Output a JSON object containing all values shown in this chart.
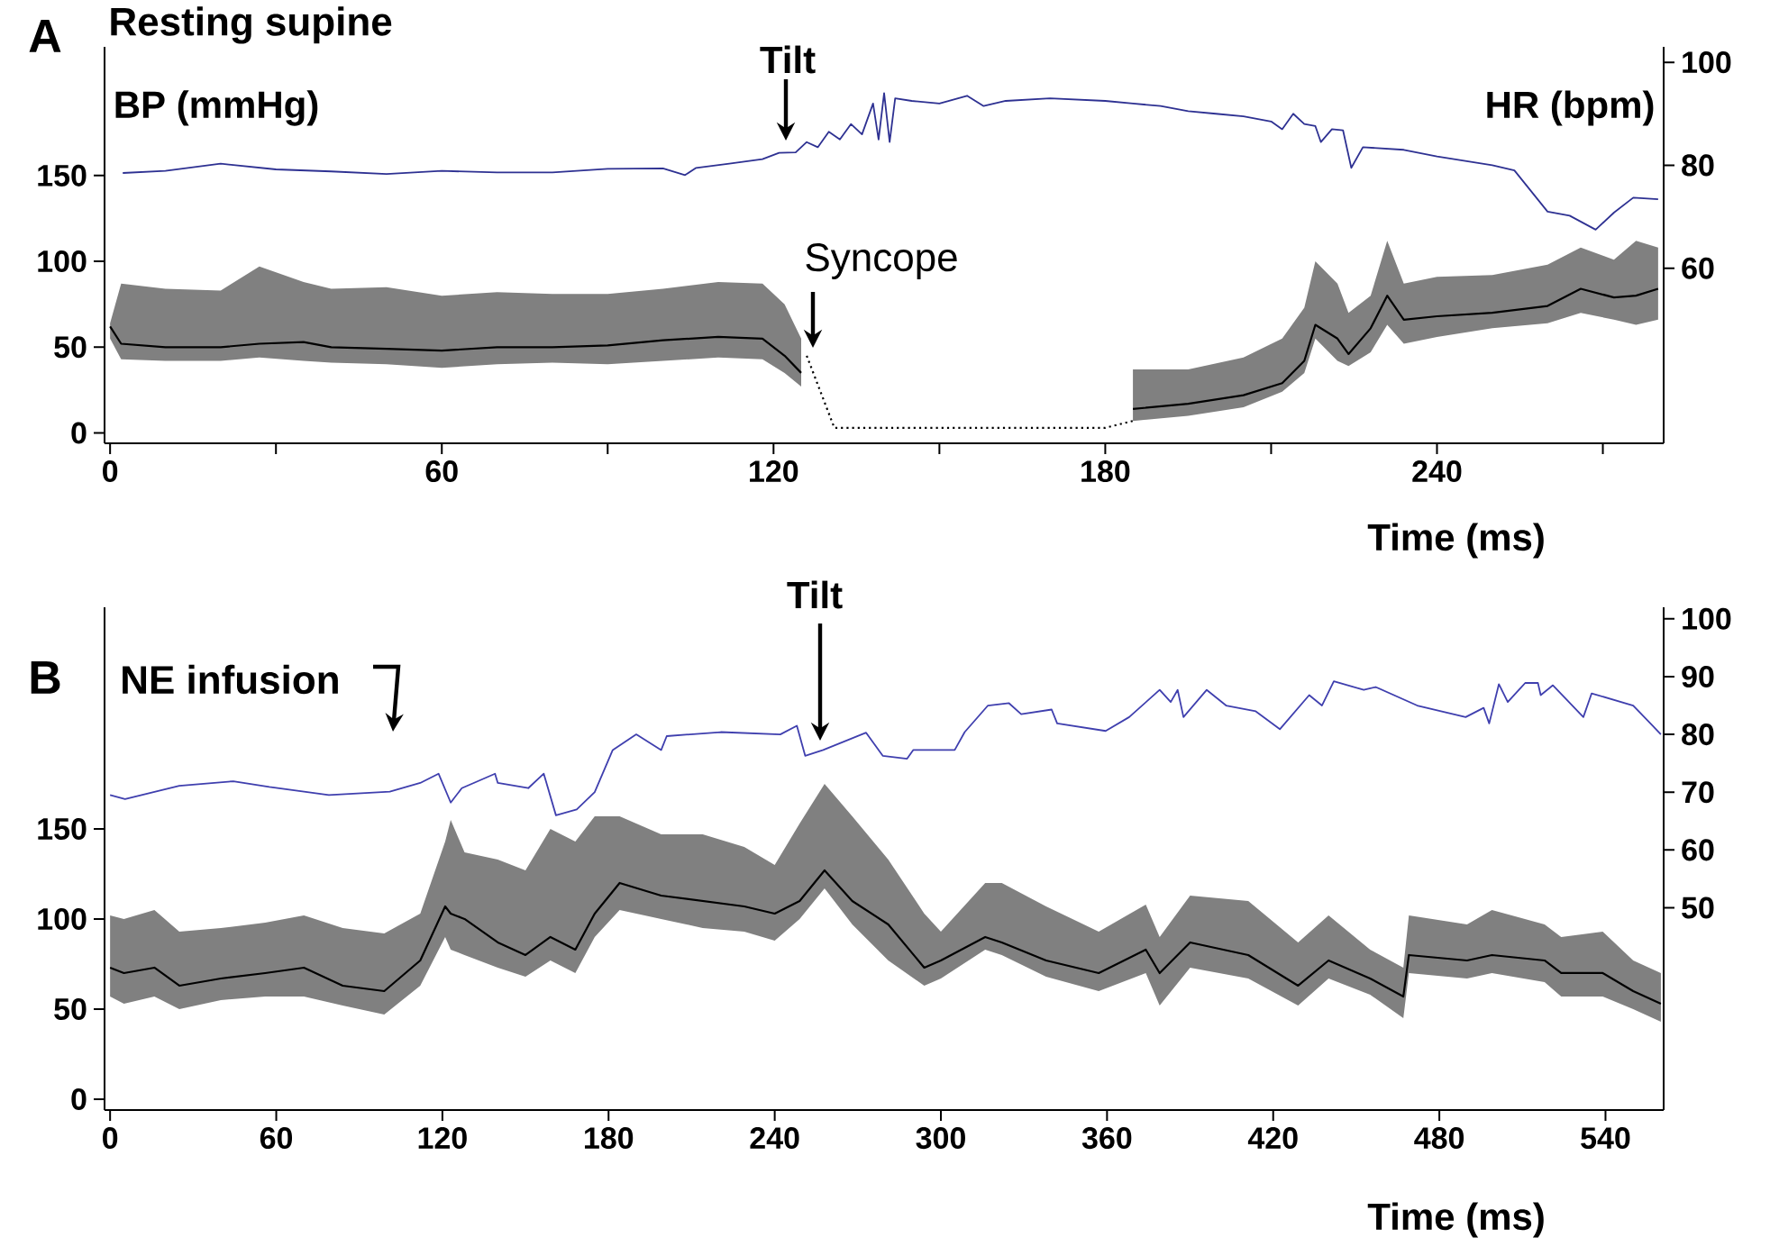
{
  "chart_data": [
    {
      "type": "line",
      "title": "Resting supine",
      "xlabel": "Time (ms)",
      "ylabel": "BP (mmHg)",
      "y2label": "HR (bpm)",
      "xlim": [
        -1,
        281
      ],
      "xticks": [
        0,
        {
          "value": 30,
          "label": null
        },
        60,
        {
          "value": 90,
          "label": null
        },
        120,
        {
          "value": 150,
          "label": null
        },
        180,
        {
          "value": 210,
          "label": null
        },
        240,
        {
          "value": 270,
          "label": null
        }
      ],
      "ylim": [
        -6,
        225
      ],
      "yticks": [
        0,
        50,
        100,
        150
      ],
      "y2lim": [
        26,
        103
      ],
      "y2ticks": [
        60,
        80,
        100
      ],
      "annotations": [
        "A",
        "Tilt",
        "Syncope"
      ],
      "series": [
        {
          "color": "#000000",
          "x": [
            0,
            2,
            10,
            20,
            27,
            35,
            40,
            50,
            60,
            70,
            80,
            90,
            100,
            110,
            118,
            122,
            125,
            150,
            185,
            195,
            205,
            212,
            216,
            218,
            222,
            224,
            228,
            231,
            234,
            240,
            250,
            260,
            266,
            272,
            276,
            280
          ],
          "values": [
            62,
            52,
            50,
            50,
            52,
            53,
            50,
            49,
            48,
            50,
            50,
            51,
            54,
            56,
            55,
            45,
            35,
            null,
            14,
            17,
            22,
            29,
            42,
            63,
            55,
            46,
            61,
            80,
            66,
            68,
            70,
            74,
            84,
            79,
            80,
            84
          ],
          "lower": [
            55,
            43,
            42,
            42,
            44,
            42,
            41,
            40,
            38,
            40,
            41,
            40,
            42,
            44,
            43,
            35,
            27,
            null,
            7,
            10,
            15,
            24,
            35,
            55,
            42,
            39,
            47,
            63,
            52,
            56,
            61,
            64,
            70,
            66,
            63,
            66
          ],
          "upper": [
            64,
            87,
            84,
            83,
            97,
            88,
            84,
            85,
            80,
            82,
            81,
            81,
            84,
            88,
            87,
            75,
            55,
            null,
            37,
            37,
            44,
            55,
            73,
            100,
            87,
            70,
            80,
            112,
            87,
            91,
            92,
            98,
            108,
            101,
            112,
            108
          ]
        },
        {
          "color": "#000000",
          "line_style": "dotted",
          "x": [
            126,
            131,
            180,
            185
          ],
          "values": [
            45,
            3,
            3,
            7
          ]
        },
        {
          "axis": "y2",
          "color": "#2e3192",
          "x": [
            2.3,
            10,
            20,
            30,
            40,
            50,
            60,
            70,
            80,
            90,
            100,
            104,
            106,
            112,
            118,
            121,
            124,
            126,
            128,
            130,
            132,
            134,
            136,
            138,
            139,
            140,
            141,
            142,
            145,
            150,
            155,
            158,
            162,
            170,
            180,
            185,
            190,
            195,
            200,
            205,
            210,
            212,
            214,
            216,
            218,
            219,
            221,
            223,
            224.5,
            226.6,
            234,
            240,
            250,
            254,
            260,
            264,
            268.7,
            272,
            275.5,
            280
          ],
          "values": [
            78.5,
            78.9,
            80.3,
            79.2,
            78.8,
            78.3,
            78.9,
            78.6,
            78.6,
            79.3,
            79.4,
            78.1,
            79.5,
            80.3,
            81.2,
            82.4,
            82.5,
            84.5,
            83.5,
            86.5,
            85,
            88,
            86,
            92,
            85,
            94,
            84.5,
            93,
            92.5,
            92,
            93.5,
            91.5,
            92.5,
            93,
            92.5,
            92,
            91.5,
            90.5,
            90,
            89.5,
            88.5,
            87,
            90,
            88,
            87.6,
            84.5,
            87,
            86.8,
            79.5,
            83.5,
            83,
            81.7,
            80,
            79,
            71,
            70.2,
            67.5,
            70.8,
            73.7,
            73.4
          ]
        }
      ]
    },
    {
      "type": "line",
      "xlabel": "Time (ms)",
      "xlim": [
        -2,
        561
      ],
      "xticks": [
        0,
        60,
        120,
        180,
        240,
        300,
        360,
        420,
        480,
        540
      ],
      "ylim": [
        -6,
        273
      ],
      "yticks": [
        0,
        50,
        100,
        150
      ],
      "y2lim": [
        15,
        102
      ],
      "y2ticks": [
        50,
        60,
        70,
        80,
        90,
        100
      ],
      "annotations": [
        "B",
        "NE infusion",
        "Tilt"
      ],
      "series": [
        {
          "color": "#000000",
          "x": [
            0,
            5,
            16,
            25,
            40,
            56,
            70,
            84,
            99,
            112,
            121,
            123,
            128,
            140,
            150,
            159,
            168,
            175,
            184,
            199,
            214,
            229,
            240,
            249,
            258,
            268,
            281,
            294,
            300,
            316,
            322,
            338,
            357,
            374,
            379,
            390,
            411,
            429,
            440,
            455,
            467,
            469,
            490,
            499,
            518,
            524,
            539,
            550,
            560
          ],
          "values": [
            73,
            70,
            73,
            63,
            67,
            70,
            73,
            63,
            60,
            77,
            107,
            103,
            100,
            87,
            80,
            90,
            83,
            103,
            120,
            113,
            110,
            107,
            103,
            110,
            127,
            110,
            97,
            73,
            77,
            90,
            87,
            77,
            70,
            83,
            70,
            87,
            80,
            63,
            77,
            67,
            57,
            80,
            77,
            80,
            77,
            70,
            70,
            60,
            53
          ],
          "lower": [
            57,
            53,
            57,
            50,
            55,
            57,
            57,
            52,
            47,
            63,
            90,
            83,
            80,
            73,
            68,
            77,
            70,
            90,
            105,
            100,
            95,
            93,
            88,
            100,
            117,
            97,
            77,
            63,
            67,
            83,
            80,
            68,
            60,
            70,
            52,
            73,
            67,
            52,
            67,
            58,
            45,
            70,
            67,
            70,
            65,
            57,
            57,
            50,
            43
          ],
          "upper": [
            102,
            100,
            105,
            93,
            95,
            98,
            102,
            95,
            92,
            103,
            143,
            155,
            137,
            133,
            127,
            150,
            143,
            157,
            157,
            147,
            147,
            140,
            130,
            153,
            175,
            157,
            133,
            103,
            93,
            120,
            120,
            107,
            93,
            108,
            90,
            113,
            110,
            87,
            102,
            83,
            73,
            102,
            97,
            105,
            97,
            90,
            93,
            77,
            70
          ]
        },
        {
          "axis": "y2",
          "color": "#3f3fae",
          "x": [
            0,
            5.4,
            25,
            44.5,
            57.5,
            79,
            101,
            112,
            118.6,
            123,
            127,
            139,
            140,
            151,
            156.6,
            161,
            168.5,
            175,
            181.5,
            190,
            199,
            201,
            220.5,
            242,
            248,
            251,
            257.5,
            273,
            279,
            287.8,
            290,
            305,
            308.6,
            317,
            324.6,
            329,
            340,
            342,
            359.5,
            368,
            379,
            383,
            385.5,
            387.6,
            396,
            403,
            413.7,
            422.4,
            433,
            437.6,
            441.9,
            452.7,
            457,
            472,
            489.5,
            496,
            498,
            501.5,
            504.7,
            511,
            515.6,
            516.6,
            521,
            532,
            535,
            550,
            557,
            560
          ],
          "values": [
            69.5,
            68.8,
            71.1,
            71.9,
            70.9,
            69.5,
            70.1,
            71.6,
            73.2,
            68.2,
            70.7,
            73.2,
            71.6,
            70.7,
            73.2,
            66,
            67,
            70,
            77.3,
            80,
            77.3,
            79.7,
            80.4,
            80,
            81.5,
            76.3,
            77.3,
            80.3,
            76.3,
            75.8,
            77.3,
            77.3,
            80.4,
            85,
            85.4,
            83.5,
            84.3,
            81.9,
            80.6,
            83,
            87.7,
            85.6,
            87.7,
            83,
            87.7,
            85,
            84,
            80.9,
            86.8,
            85,
            89.2,
            87.7,
            88.2,
            85,
            83,
            84.6,
            81.9,
            88.7,
            85.6,
            88.9,
            88.9,
            86.8,
            88.5,
            83,
            87.1,
            85,
            81.5,
            80
          ]
        }
      ]
    }
  ]
}
